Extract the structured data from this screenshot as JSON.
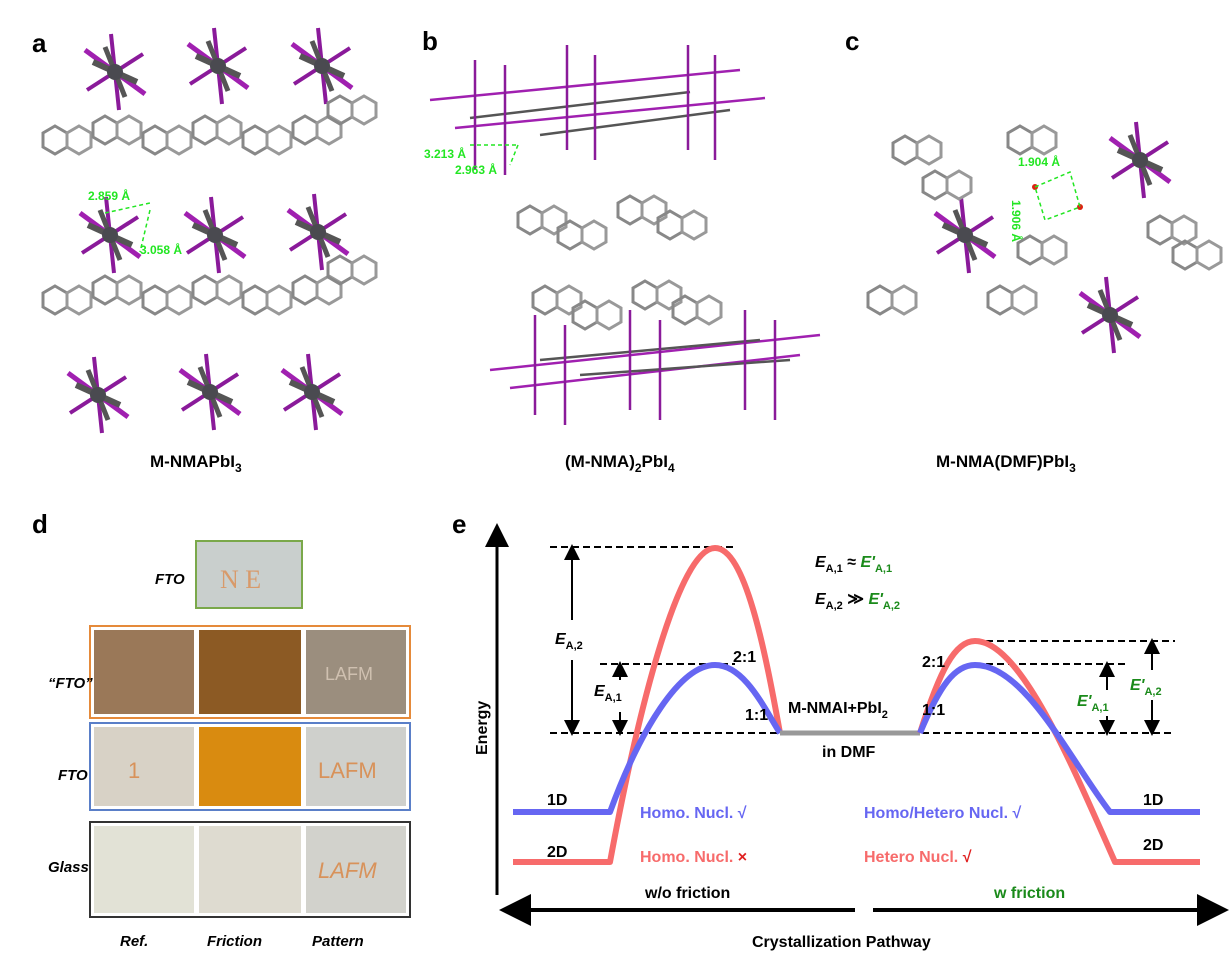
{
  "panels": {
    "a": {
      "letter": "a",
      "title_main": "M-NMAPbI",
      "title_sub": "3",
      "distances": [
        "2.859 Å",
        "3.058 Å"
      ]
    },
    "b": {
      "letter": "b",
      "title_pre": "(M-NMA)",
      "title_sub1": "2",
      "title_mid": "PbI",
      "title_sub2": "4",
      "distances": [
        "3.213 Å",
        "2.963 Å"
      ]
    },
    "c": {
      "letter": "c",
      "title_main": "M-NMA(DMF)PbI",
      "title_sub": "3",
      "distances": [
        "1.904 Å",
        "1.906 Å"
      ]
    },
    "d": {
      "letter": "d",
      "rows": [
        {
          "label": "FTO"
        },
        {
          "label": "“FTO”"
        },
        {
          "label": "FTO"
        },
        {
          "label": "Glass"
        }
      ],
      "columns": [
        "Ref.",
        "Friction",
        "Pattern"
      ],
      "sample_writing": [
        "N E",
        "LAFM",
        "1",
        "LAFM",
        "LAFM"
      ]
    },
    "e": {
      "letter": "e",
      "y_axis_label": "Energy",
      "x_axis_label": "Crystallization Pathway",
      "left_condition": "w/o friction",
      "right_condition": "w friction",
      "eq1": {
        "lhs": "E",
        "lhs_sub": "A,1",
        "op": " ≈ ",
        "rhs": "E'",
        "rhs_sub": "A,1"
      },
      "eq2": {
        "lhs": "E",
        "lhs_sub": "A,2",
        "op": " ≫ ",
        "rhs": "E'",
        "rhs_sub": "A,2"
      },
      "barrier_labels": {
        "ea2": "E",
        "ea2_sub": "A,2",
        "ea1": "E",
        "ea1_sub": "A,1",
        "ea1p": "E'",
        "ea1p_sub": "A,1",
        "ea2p": "E'",
        "ea2p_sub": "A,2"
      },
      "ratio_2_1": "2:1",
      "ratio_1_1": "1:1",
      "precursor": "M-NMAI+PbI",
      "precursor_sub": "2",
      "solvent": "in DMF",
      "phase_1d": "1D",
      "phase_2d": "2D",
      "left_blue_note": "Homo. Nucl. √",
      "left_red_note_text": "Homo. Nucl. ",
      "left_red_mark": "×",
      "right_blue_note": "Homo/Hetero Nucl. √",
      "right_red_note_text": "Hetero Nucl. ",
      "right_red_mark": "√",
      "colors": {
        "blue": "#6666f2",
        "red": "#f76b6b",
        "green": "#1a8a1a",
        "grey": "#999999"
      }
    }
  }
}
